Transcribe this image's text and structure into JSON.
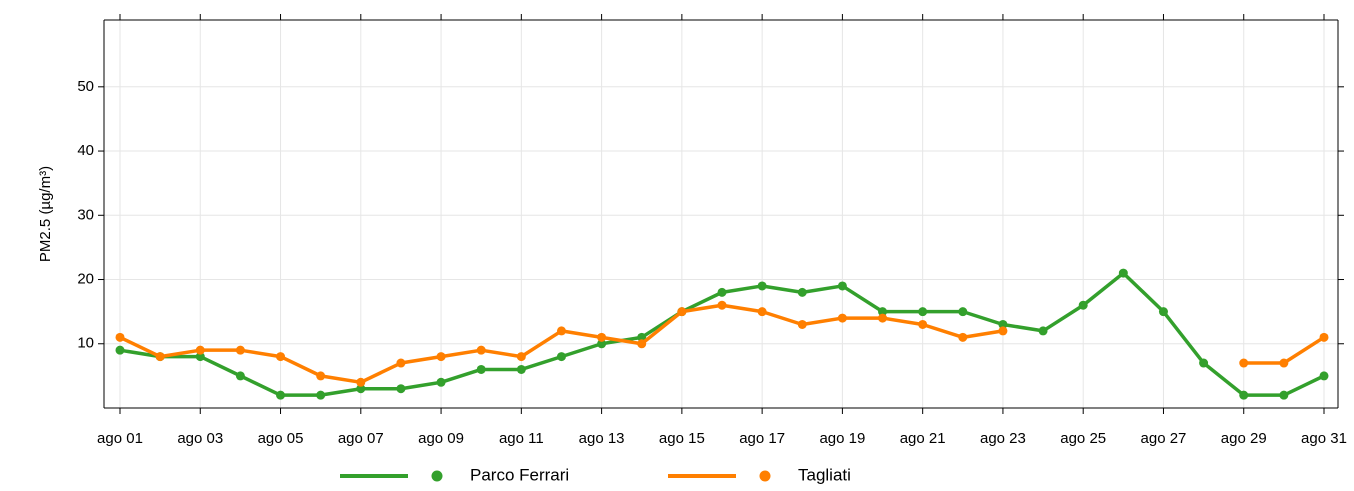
{
  "chart_data": {
    "type": "line",
    "y_label": "PM2.5 (µg/m³)",
    "categories": [
      "ago 01",
      null,
      "ago 03",
      null,
      "ago 05",
      null,
      "ago 07",
      null,
      "ago 09",
      null,
      "ago 11",
      null,
      "ago 13",
      null,
      "ago 15",
      null,
      "ago 17",
      null,
      "ago 19",
      null,
      "ago 21",
      null,
      "ago 23",
      null,
      "ago 25",
      null,
      "ago 27",
      null,
      "ago 29",
      null,
      "ago 31"
    ],
    "series": [
      {
        "name": "Parco Ferrari",
        "color": "#33a02c",
        "values": [
          9,
          8,
          8,
          5,
          2,
          2,
          3,
          3,
          4,
          6,
          6,
          8,
          10,
          11,
          15,
          18,
          19,
          18,
          19,
          15,
          15,
          15,
          13,
          12,
          16,
          21,
          15,
          7,
          2,
          2,
          5
        ]
      },
      {
        "name": "Tagliati",
        "color": "#ff7f00",
        "values": [
          11,
          8,
          9,
          9,
          8,
          5,
          4,
          7,
          8,
          9,
          8,
          12,
          11,
          10,
          15,
          16,
          15,
          13,
          14,
          14,
          13,
          11,
          12,
          null,
          null,
          null,
          null,
          null,
          7,
          7,
          11
        ]
      }
    ],
    "ylim": [
      0,
      60.4
    ],
    "yticks": [
      10,
      20,
      30,
      40,
      50
    ],
    "grid": true,
    "legend": "bottom"
  }
}
